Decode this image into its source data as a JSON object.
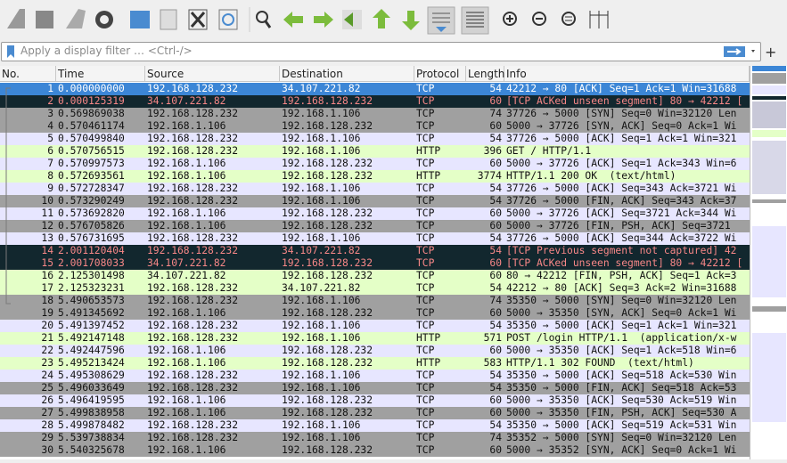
{
  "filter": {
    "placeholder": "Apply a display filter … <Ctrl-/>"
  },
  "packet_list": {
    "columns": [
      "No.",
      "Time",
      "Source",
      "Destination",
      "Protocol",
      "Length",
      "Info"
    ],
    "rows": [
      {
        "cells": [
          1,
          "0.000000000",
          "192.168.128.232",
          "34.107.221.82",
          "TCP",
          54,
          "42212 → 80 [ACK] Seq=1 Ack=1 Win=31688"
        ],
        "bg": "#3c86d6",
        "fg": "#ffffff"
      },
      {
        "cells": [
          2,
          "0.000125319",
          "34.107.221.82",
          "192.168.128.232",
          "TCP",
          60,
          "[TCP ACKed unseen segment] 80 → 42212 ["
        ],
        "bg": "#12272e",
        "fg": "#f78787"
      },
      {
        "cells": [
          3,
          "0.569869038",
          "192.168.128.232",
          "192.168.1.106",
          "TCP",
          74,
          "37726 → 5000 [SYN] Seq=0 Win=32120 Len"
        ],
        "bg": "#a0a0a0",
        "fg": "#121212"
      },
      {
        "cells": [
          4,
          "0.570461174",
          "192.168.1.106",
          "192.168.128.232",
          "TCP",
          60,
          "5000 → 37726 [SYN, ACK] Seq=0 Ack=1 Wi"
        ],
        "bg": "#a0a0a0",
        "fg": "#121212"
      },
      {
        "cells": [
          5,
          "0.570499840",
          "192.168.128.232",
          "192.168.1.106",
          "TCP",
          54,
          "37726 → 5000 [ACK] Seq=1 Ack=1 Win=321"
        ],
        "bg": "#e7e6ff",
        "fg": "#121212"
      },
      {
        "cells": [
          6,
          "0.570756515",
          "192.168.128.232",
          "192.168.1.106",
          "HTTP",
          396,
          "GET / HTTP/1.1"
        ],
        "bg": "#e4ffc7",
        "fg": "#121212"
      },
      {
        "cells": [
          7,
          "0.570997573",
          "192.168.1.106",
          "192.168.128.232",
          "TCP",
          60,
          "5000 → 37726 [ACK] Seq=1 Ack=343 Win=6"
        ],
        "bg": "#e7e6ff",
        "fg": "#121212"
      },
      {
        "cells": [
          8,
          "0.572693561",
          "192.168.1.106",
          "192.168.128.232",
          "HTTP",
          3774,
          "HTTP/1.1 200 OK  (text/html)"
        ],
        "bg": "#e4ffc7",
        "fg": "#121212"
      },
      {
        "cells": [
          9,
          "0.572728347",
          "192.168.128.232",
          "192.168.1.106",
          "TCP",
          54,
          "37726 → 5000 [ACK] Seq=343 Ack=3721 Wi"
        ],
        "bg": "#e7e6ff",
        "fg": "#121212"
      },
      {
        "cells": [
          10,
          "0.573290249",
          "192.168.128.232",
          "192.168.1.106",
          "TCP",
          54,
          "37726 → 5000 [FIN, ACK] Seq=343 Ack=37"
        ],
        "bg": "#a0a0a0",
        "fg": "#121212"
      },
      {
        "cells": [
          11,
          "0.573692820",
          "192.168.1.106",
          "192.168.128.232",
          "TCP",
          60,
          "5000 → 37726 [ACK] Seq=3721 Ack=344 Wi"
        ],
        "bg": "#e7e6ff",
        "fg": "#121212"
      },
      {
        "cells": [
          12,
          "0.576705826",
          "192.168.1.106",
          "192.168.128.232",
          "TCP",
          60,
          "5000 → 37726 [FIN, PSH, ACK] Seq=3721"
        ],
        "bg": "#a0a0a0",
        "fg": "#121212"
      },
      {
        "cells": [
          13,
          "0.576731695",
          "192.168.128.232",
          "192.168.1.106",
          "TCP",
          54,
          "37726 → 5000 [ACK] Seq=344 Ack=3722 Wi"
        ],
        "bg": "#e7e6ff",
        "fg": "#121212"
      },
      {
        "cells": [
          14,
          "2.001120404",
          "192.168.128.232",
          "34.107.221.82",
          "TCP",
          54,
          "[TCP Previous segment not captured] 42"
        ],
        "bg": "#12272e",
        "fg": "#f78787"
      },
      {
        "cells": [
          15,
          "2.001708033",
          "34.107.221.82",
          "192.168.128.232",
          "TCP",
          60,
          "[TCP ACKed unseen segment] 80 → 42212 ["
        ],
        "bg": "#12272e",
        "fg": "#f78787"
      },
      {
        "cells": [
          16,
          "2.125301498",
          "34.107.221.82",
          "192.168.128.232",
          "TCP",
          60,
          "80 → 42212 [FIN, PSH, ACK] Seq=1 Ack=3"
        ],
        "bg": "#e4ffc7",
        "fg": "#121212"
      },
      {
        "cells": [
          17,
          "2.125323231",
          "192.168.128.232",
          "34.107.221.82",
          "TCP",
          54,
          "42212 → 80 [ACK] Seq=3 Ack=2 Win=31688"
        ],
        "bg": "#e4ffc7",
        "fg": "#121212"
      },
      {
        "cells": [
          18,
          "5.490653573",
          "192.168.128.232",
          "192.168.1.106",
          "TCP",
          74,
          "35350 → 5000 [SYN] Seq=0 Win=32120 Len"
        ],
        "bg": "#a0a0a0",
        "fg": "#121212"
      },
      {
        "cells": [
          19,
          "5.491345692",
          "192.168.1.106",
          "192.168.128.232",
          "TCP",
          60,
          "5000 → 35350 [SYN, ACK] Seq=0 Ack=1 Wi"
        ],
        "bg": "#a0a0a0",
        "fg": "#121212"
      },
      {
        "cells": [
          20,
          "5.491397452",
          "192.168.128.232",
          "192.168.1.106",
          "TCP",
          54,
          "35350 → 5000 [ACK] Seq=1 Ack=1 Win=321"
        ],
        "bg": "#e7e6ff",
        "fg": "#121212"
      },
      {
        "cells": [
          21,
          "5.492147148",
          "192.168.128.232",
          "192.168.1.106",
          "HTTP",
          571,
          "POST /login HTTP/1.1  (application/x-w"
        ],
        "bg": "#e4ffc7",
        "fg": "#121212"
      },
      {
        "cells": [
          22,
          "5.492447596",
          "192.168.1.106",
          "192.168.128.232",
          "TCP",
          60,
          "5000 → 35350 [ACK] Seq=1 Ack=518 Win=6"
        ],
        "bg": "#e7e6ff",
        "fg": "#121212"
      },
      {
        "cells": [
          23,
          "5.495213424",
          "192.168.1.106",
          "192.168.128.232",
          "HTTP",
          583,
          "HTTP/1.1 302 FOUND  (text/html)"
        ],
        "bg": "#e4ffc7",
        "fg": "#121212"
      },
      {
        "cells": [
          24,
          "5.495308629",
          "192.168.128.232",
          "192.168.1.106",
          "TCP",
          54,
          "35350 → 5000 [ACK] Seq=518 Ack=530 Win"
        ],
        "bg": "#e7e6ff",
        "fg": "#121212"
      },
      {
        "cells": [
          25,
          "5.496033649",
          "192.168.128.232",
          "192.168.1.106",
          "TCP",
          54,
          "35350 → 5000 [FIN, ACK] Seq=518 Ack=53"
        ],
        "bg": "#a0a0a0",
        "fg": "#121212"
      },
      {
        "cells": [
          26,
          "5.496419595",
          "192.168.1.106",
          "192.168.128.232",
          "TCP",
          60,
          "5000 → 35350 [ACK] Seq=530 Ack=519 Win"
        ],
        "bg": "#e7e6ff",
        "fg": "#121212"
      },
      {
        "cells": [
          27,
          "5.499838958",
          "192.168.1.106",
          "192.168.128.232",
          "TCP",
          60,
          "5000 → 35350 [FIN, PSH, ACK] Seq=530 A"
        ],
        "bg": "#a0a0a0",
        "fg": "#121212"
      },
      {
        "cells": [
          28,
          "5.499878482",
          "192.168.128.232",
          "192.168.1.106",
          "TCP",
          54,
          "35350 → 5000 [ACK] Seq=519 Ack=531 Win"
        ],
        "bg": "#e7e6ff",
        "fg": "#121212"
      },
      {
        "cells": [
          29,
          "5.539738834",
          "192.168.128.232",
          "192.168.1.106",
          "TCP",
          74,
          "35352 → 5000 [SYN] Seq=0 Win=32120 Len"
        ],
        "bg": "#a0a0a0",
        "fg": "#121212"
      },
      {
        "cells": [
          30,
          "5.540325678",
          "192.168.1.106",
          "192.168.128.232",
          "TCP",
          60,
          "5000 → 35352 [SYN, ACK] Seq=0 Ack=1 Wi"
        ],
        "bg": "#a0a0a0",
        "fg": "#121212"
      }
    ]
  }
}
